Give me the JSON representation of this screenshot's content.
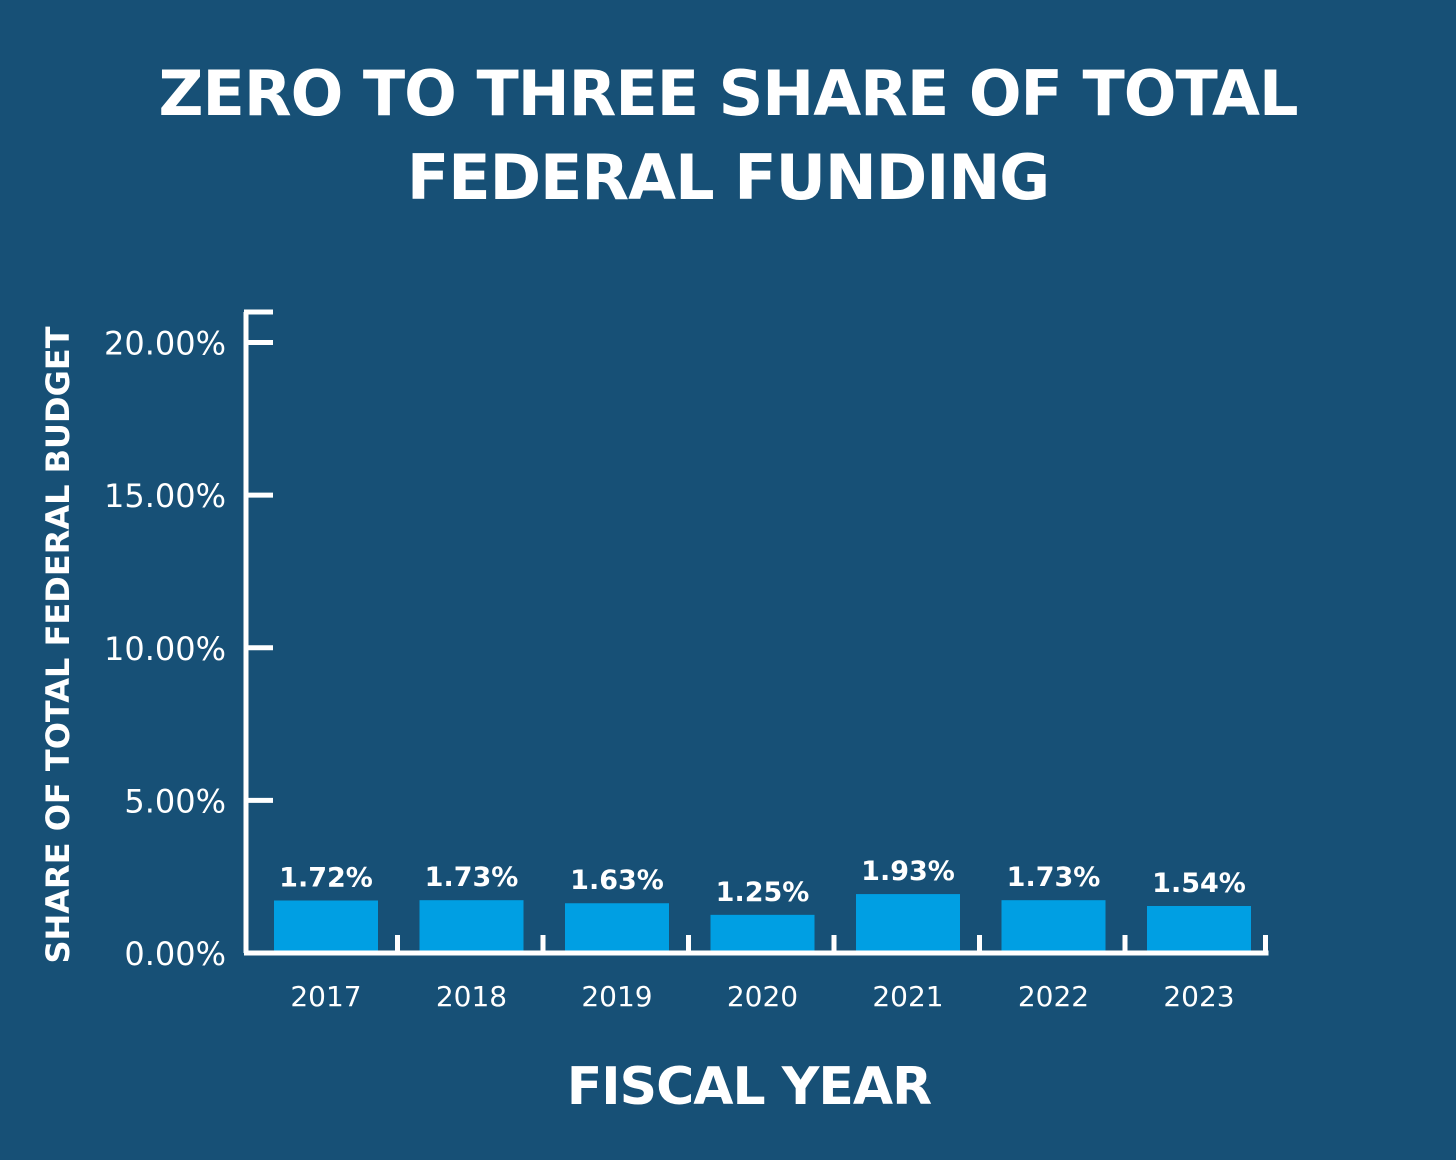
{
  "chart_data": {
    "type": "bar",
    "title": "ZERO TO THREE SHARE OF TOTAL FEDERAL FUNDING",
    "xlabel": "FISCAL YEAR",
    "ylabel": "SHARE OF TOTAL FEDERAL BUDGET",
    "categories": [
      "2017",
      "2018",
      "2019",
      "2020",
      "2021",
      "2022",
      "2023"
    ],
    "values": [
      1.72,
      1.73,
      1.63,
      1.25,
      1.93,
      1.73,
      1.54
    ],
    "value_labels": [
      "1.72%",
      "1.73%",
      "1.63%",
      "1.25%",
      "1.93%",
      "1.73%",
      "1.54%"
    ],
    "yticks": [
      0,
      5,
      10,
      15,
      20
    ],
    "ytick_labels": [
      "0.00%",
      "5.00%",
      "10.00%",
      "15.00%",
      "20.00%"
    ],
    "ylim": [
      0,
      21
    ],
    "grid": false,
    "legend": "none",
    "colors": {
      "background": "#175076",
      "bar": "#009fe3",
      "text": "#ffffff",
      "axis": "#ffffff"
    }
  }
}
